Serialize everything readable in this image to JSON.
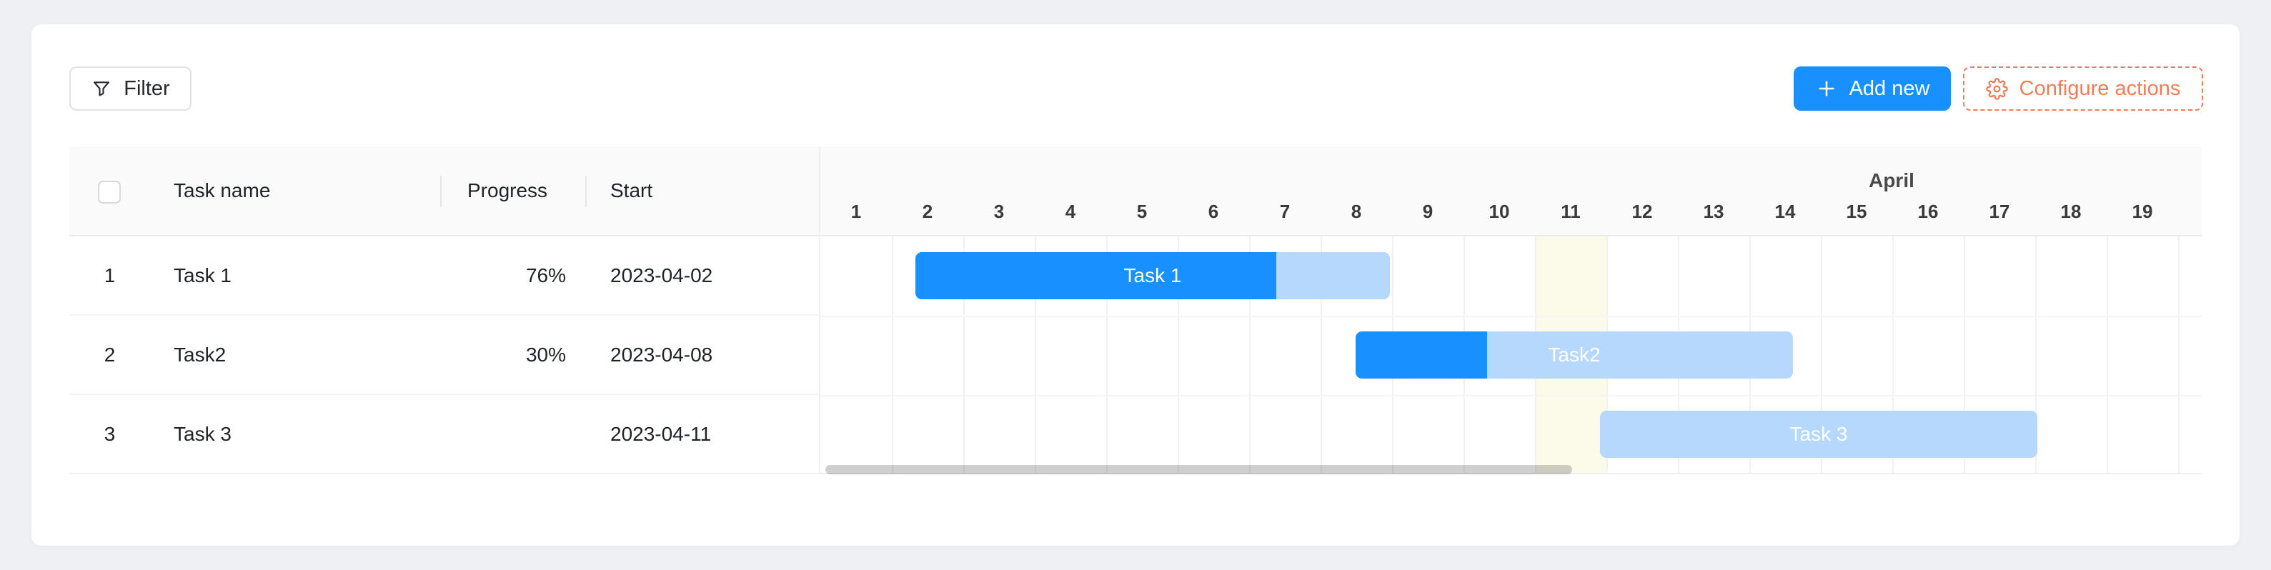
{
  "toolbar": {
    "filter_label": "Filter",
    "add_new_label": "Add new",
    "configure_actions_label": "Configure actions"
  },
  "table": {
    "columns": [
      {
        "label": "Task name"
      },
      {
        "label": "Progress"
      },
      {
        "label": "Start"
      }
    ],
    "rows": [
      {
        "num": "1",
        "name": "Task 1",
        "progress": "76%",
        "start": "2023-04-02"
      },
      {
        "num": "2",
        "name": "Task2",
        "progress": "30%",
        "start": "2023-04-08"
      },
      {
        "num": "3",
        "name": "Task 3",
        "progress": "",
        "start": "2023-04-11"
      }
    ]
  },
  "timeline": {
    "month_label": "April",
    "day_numbers": [
      1,
      2,
      3,
      4,
      5,
      6,
      7,
      8,
      9,
      10,
      11,
      12,
      13,
      14,
      15,
      16,
      17,
      18,
      19
    ],
    "today_day": 11
  },
  "chart_data": {
    "type": "gantt",
    "month": "April 2023",
    "visible_day_range": [
      1,
      19
    ],
    "today_day": 11,
    "tasks": [
      {
        "name": "Task 1",
        "start": "2023-04-02",
        "progress_pct": 76,
        "bar_start_offset_days": 1.33,
        "bar_duration_days": 6.64
      },
      {
        "name": "Task2",
        "start": "2023-04-08",
        "progress_pct": 30,
        "bar_start_offset_days": 7.49,
        "bar_duration_days": 6.12
      },
      {
        "name": "Task 3",
        "start": "2023-04-11",
        "progress_pct": 0,
        "bar_start_offset_days": 10.91,
        "bar_duration_days": 6.12
      }
    ]
  },
  "colors": {
    "primary_blue": "#1890ff",
    "bar_light_blue": "#b6d8fc",
    "today_column": "#fcfbe9",
    "accent_orange": "#f07d5a",
    "page_background": "#eef0f4"
  }
}
